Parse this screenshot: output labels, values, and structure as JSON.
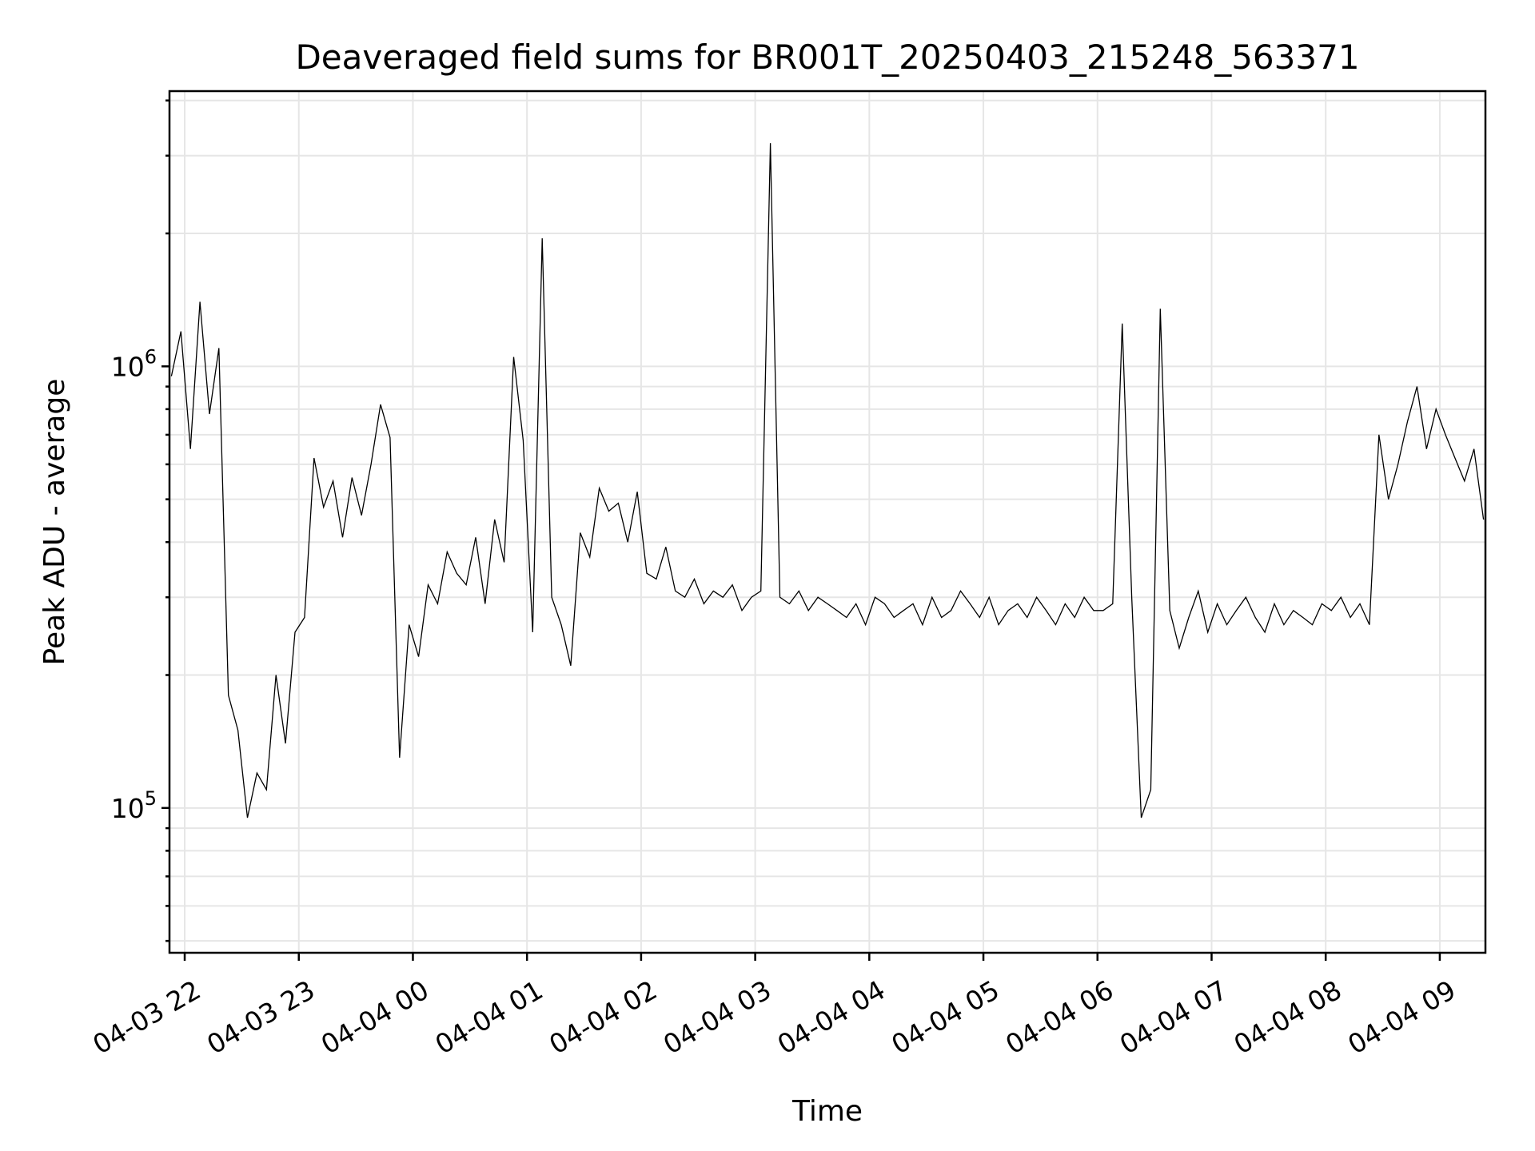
{
  "chart_data": {
    "type": "line",
    "title": "Deaveraged field sums for BR001T_20250403_215248_563371",
    "xlabel": "Time",
    "ylabel": "Peak ADU - average",
    "y_scale": "log",
    "ylim": [
      47000,
      4200000
    ],
    "xlim": [
      "2025-04-03 21:52",
      "2025-04-04 09:24"
    ],
    "grid": true,
    "legend": "none",
    "line_color": "#000000",
    "x_ticks": [
      {
        "label": "04-03 22",
        "time": "2025-04-03 22:00"
      },
      {
        "label": "04-03 23",
        "time": "2025-04-03 23:00"
      },
      {
        "label": "04-04 00",
        "time": "2025-04-04 00:00"
      },
      {
        "label": "04-04 01",
        "time": "2025-04-04 01:00"
      },
      {
        "label": "04-04 02",
        "time": "2025-04-04 02:00"
      },
      {
        "label": "04-04 03",
        "time": "2025-04-04 03:00"
      },
      {
        "label": "04-04 04",
        "time": "2025-04-04 04:00"
      },
      {
        "label": "04-04 05",
        "time": "2025-04-04 05:00"
      },
      {
        "label": "04-04 06",
        "time": "2025-04-04 06:00"
      },
      {
        "label": "04-04 07",
        "time": "2025-04-04 07:00"
      },
      {
        "label": "04-04 08",
        "time": "2025-04-04 08:00"
      },
      {
        "label": "04-04 09",
        "time": "2025-04-04 09:00"
      }
    ],
    "y_ticks": [
      {
        "base": "10",
        "exp": "5",
        "value": 100000
      },
      {
        "base": "10",
        "exp": "6",
        "value": 1000000
      }
    ],
    "series": [
      {
        "x": [
          "2025-04-03 21:53",
          "2025-04-03 21:58",
          "2025-04-03 22:03",
          "2025-04-03 22:08",
          "2025-04-03 22:13",
          "2025-04-03 22:18",
          "2025-04-03 22:23",
          "2025-04-03 22:28",
          "2025-04-03 22:33",
          "2025-04-03 22:38",
          "2025-04-03 22:43",
          "2025-04-03 22:48",
          "2025-04-03 22:53",
          "2025-04-03 22:58",
          "2025-04-03 23:03",
          "2025-04-03 23:08",
          "2025-04-03 23:13",
          "2025-04-03 23:18",
          "2025-04-03 23:23",
          "2025-04-03 23:28",
          "2025-04-03 23:33",
          "2025-04-03 23:38",
          "2025-04-03 23:43",
          "2025-04-03 23:48",
          "2025-04-03 23:53",
          "2025-04-03 23:58",
          "2025-04-04 00:03",
          "2025-04-04 00:08",
          "2025-04-04 00:13",
          "2025-04-04 00:18",
          "2025-04-04 00:23",
          "2025-04-04 00:28",
          "2025-04-04 00:33",
          "2025-04-04 00:38",
          "2025-04-04 00:43",
          "2025-04-04 00:48",
          "2025-04-04 00:53",
          "2025-04-04 00:58",
          "2025-04-04 01:03",
          "2025-04-04 01:08",
          "2025-04-04 01:13",
          "2025-04-04 01:18",
          "2025-04-04 01:23",
          "2025-04-04 01:28",
          "2025-04-04 01:33",
          "2025-04-04 01:38",
          "2025-04-04 01:43",
          "2025-04-04 01:48",
          "2025-04-04 01:53",
          "2025-04-04 01:58",
          "2025-04-04 02:03",
          "2025-04-04 02:08",
          "2025-04-04 02:13",
          "2025-04-04 02:18",
          "2025-04-04 02:23",
          "2025-04-04 02:28",
          "2025-04-04 02:33",
          "2025-04-04 02:38",
          "2025-04-04 02:43",
          "2025-04-04 02:48",
          "2025-04-04 02:53",
          "2025-04-04 02:58",
          "2025-04-04 03:03",
          "2025-04-04 03:08",
          "2025-04-04 03:13",
          "2025-04-04 03:18",
          "2025-04-04 03:23",
          "2025-04-04 03:28",
          "2025-04-04 03:33",
          "2025-04-04 03:38",
          "2025-04-04 03:43",
          "2025-04-04 03:48",
          "2025-04-04 03:53",
          "2025-04-04 03:58",
          "2025-04-04 04:03",
          "2025-04-04 04:08",
          "2025-04-04 04:13",
          "2025-04-04 04:18",
          "2025-04-04 04:23",
          "2025-04-04 04:28",
          "2025-04-04 04:33",
          "2025-04-04 04:38",
          "2025-04-04 04:43",
          "2025-04-04 04:48",
          "2025-04-04 04:53",
          "2025-04-04 04:58",
          "2025-04-04 05:03",
          "2025-04-04 05:08",
          "2025-04-04 05:13",
          "2025-04-04 05:18",
          "2025-04-04 05:23",
          "2025-04-04 05:28",
          "2025-04-04 05:33",
          "2025-04-04 05:38",
          "2025-04-04 05:43",
          "2025-04-04 05:48",
          "2025-04-04 05:53",
          "2025-04-04 05:58",
          "2025-04-04 06:03",
          "2025-04-04 06:08",
          "2025-04-04 06:13",
          "2025-04-04 06:18",
          "2025-04-04 06:23",
          "2025-04-04 06:28",
          "2025-04-04 06:33",
          "2025-04-04 06:38",
          "2025-04-04 06:43",
          "2025-04-04 06:48",
          "2025-04-04 06:53",
          "2025-04-04 06:58",
          "2025-04-04 07:03",
          "2025-04-04 07:08",
          "2025-04-04 07:13",
          "2025-04-04 07:18",
          "2025-04-04 07:23",
          "2025-04-04 07:28",
          "2025-04-04 07:33",
          "2025-04-04 07:38",
          "2025-04-04 07:43",
          "2025-04-04 07:48",
          "2025-04-04 07:53",
          "2025-04-04 07:58",
          "2025-04-04 08:03",
          "2025-04-04 08:08",
          "2025-04-04 08:13",
          "2025-04-04 08:18",
          "2025-04-04 08:23",
          "2025-04-04 08:28",
          "2025-04-04 08:33",
          "2025-04-04 08:38",
          "2025-04-04 08:43",
          "2025-04-04 08:48",
          "2025-04-04 08:53",
          "2025-04-04 08:58",
          "2025-04-04 09:03",
          "2025-04-04 09:08",
          "2025-04-04 09:13",
          "2025-04-04 09:18",
          "2025-04-04 09:23"
        ],
        "y": [
          950000,
          1200000,
          650000,
          1400000,
          780000,
          1100000,
          180000,
          150000,
          95000,
          120000,
          110000,
          200000,
          140000,
          250000,
          270000,
          620000,
          480000,
          550000,
          410000,
          560000,
          460000,
          600000,
          820000,
          690000,
          130000,
          260000,
          220000,
          320000,
          290000,
          380000,
          340000,
          320000,
          410000,
          290000,
          450000,
          360000,
          1050000,
          680000,
          250000,
          1950000,
          300000,
          260000,
          210000,
          420000,
          370000,
          530000,
          470000,
          490000,
          400000,
          520000,
          340000,
          330000,
          390000,
          310000,
          300000,
          330000,
          290000,
          310000,
          300000,
          320000,
          280000,
          300000,
          310000,
          3200000,
          300000,
          290000,
          310000,
          280000,
          300000,
          290000,
          280000,
          270000,
          290000,
          260000,
          300000,
          290000,
          270000,
          280000,
          290000,
          260000,
          300000,
          270000,
          280000,
          310000,
          290000,
          270000,
          300000,
          260000,
          280000,
          290000,
          270000,
          300000,
          280000,
          260000,
          290000,
          270000,
          300000,
          280000,
          280000,
          290000,
          1250000,
          300000,
          95000,
          110000,
          1350000,
          280000,
          230000,
          270000,
          310000,
          250000,
          290000,
          260000,
          280000,
          300000,
          270000,
          250000,
          290000,
          260000,
          280000,
          270000,
          260000,
          290000,
          280000,
          300000,
          270000,
          290000,
          260000,
          700000,
          500000,
          600000,
          750000,
          900000,
          650000,
          800000,
          700000,
          620000,
          550000,
          650000,
          450000
        ]
      }
    ]
  }
}
